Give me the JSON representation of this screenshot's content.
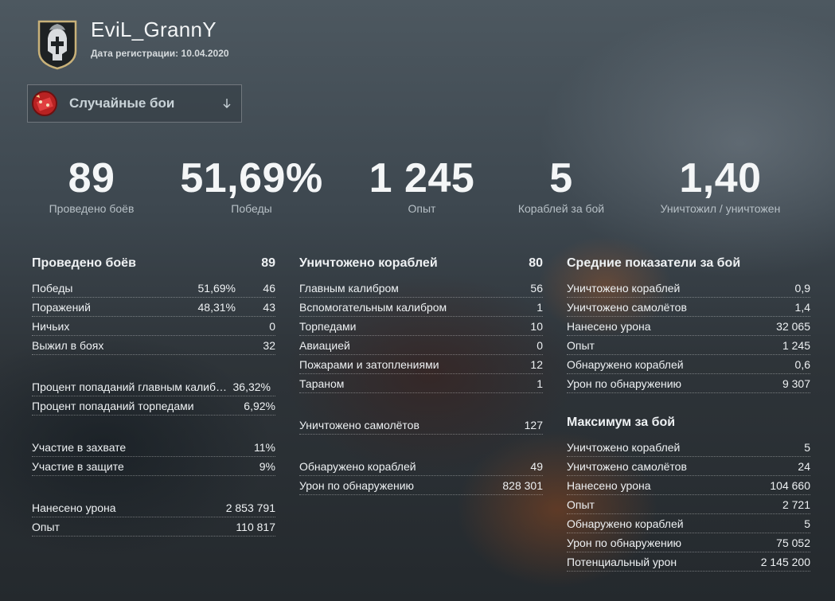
{
  "profile": {
    "nickname": "EviL_GrannY",
    "reg_label": "Дата регистрации:",
    "reg_date": "10.04.2020",
    "emblem_icon": "spartan-helmet-icon"
  },
  "mode": {
    "label": "Случайные бои",
    "icon": "random-battles-icon",
    "arrow_icon": "dropdown-arrow-icon"
  },
  "summary": [
    {
      "value": "89",
      "label": "Проведено боёв"
    },
    {
      "value": "51,69%",
      "label": "Победы"
    },
    {
      "value": "1 245",
      "label": "Опыт"
    },
    {
      "value": "5",
      "label": "Кораблей за бой"
    },
    {
      "value": "1,40",
      "label": "Уничтожил / уничтожен"
    }
  ],
  "battles": {
    "title": "Проведено боёв",
    "total": "89",
    "wins_label": "Победы",
    "wins_pct": "51,69%",
    "wins": "46",
    "losses_label": "Поражений",
    "losses_pct": "48,31%",
    "losses": "43",
    "draws_label": "Ничьих",
    "draws": "0",
    "survived_label": "Выжил в боях",
    "survived": "32",
    "main_hit_label": "Процент попаданий главным калибром",
    "main_hit": "36,32%",
    "torp_hit_label": "Процент попаданий торпедами",
    "torp_hit": "6,92%",
    "capture_label": "Участие в захвате",
    "capture": "11%",
    "defense_label": "Участие в защите",
    "defense": "9%",
    "damage_label": "Нанесено урона",
    "damage": "2 853 791",
    "xp_label": "Опыт",
    "xp": "110 817"
  },
  "kills": {
    "title": "Уничтожено кораблей",
    "total": "80",
    "main_label": "Главным калибром",
    "main": "56",
    "secondary_label": "Вспомогательным калибром",
    "secondary": "1",
    "torpedo_label": "Торпедами",
    "torpedo": "10",
    "aviation_label": "Авиацией",
    "aviation": "0",
    "fire_label": "Пожарами и затоплениями",
    "fire": "12",
    "ram_label": "Тараном",
    "ram": "1",
    "planes_label": "Уничтожено самолётов",
    "planes": "127",
    "spotted_label": "Обнаружено кораблей",
    "spotted": "49",
    "spot_dmg_label": "Урон по обнаружению",
    "spot_dmg": "828 301"
  },
  "average": {
    "title": "Средние показатели за бой",
    "ships_label": "Уничтожено кораблей",
    "ships": "0,9",
    "planes_label": "Уничтожено самолётов",
    "planes": "1,4",
    "damage_label": "Нанесено урона",
    "damage": "32 065",
    "xp_label": "Опыт",
    "xp": "1 245",
    "spotted_label": "Обнаружено кораблей",
    "spotted": "0,6",
    "spot_dmg_label": "Урон по обнаружению",
    "spot_dmg": "9 307"
  },
  "maximum": {
    "title": "Максимум за бой",
    "ships_label": "Уничтожено кораблей",
    "ships": "5",
    "planes_label": "Уничтожено самолётов",
    "planes": "24",
    "damage_label": "Нанесено урона",
    "damage": "104 660",
    "xp_label": "Опыт",
    "xp": "2 721",
    "spotted_label": "Обнаружено кораблей",
    "spotted": "5",
    "spot_dmg_label": "Урон по обнаружению",
    "spot_dmg": "75 052",
    "potential_label": "Потенциальный урон",
    "potential": "2 145 200"
  }
}
